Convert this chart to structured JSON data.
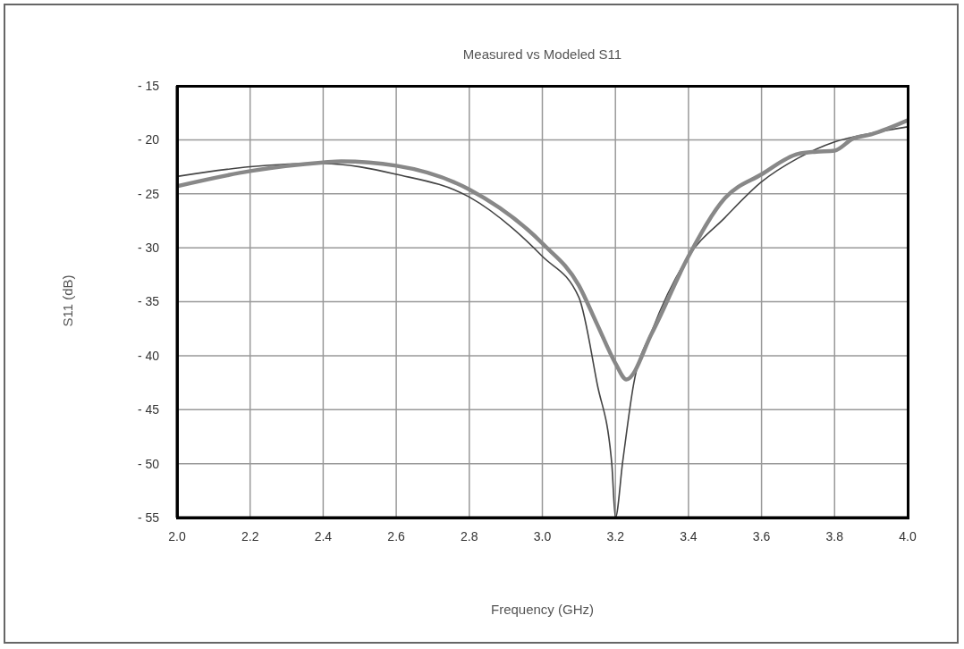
{
  "chart_data": {
    "type": "line",
    "title": "Measured vs Modeled S11",
    "xlabel": "Frequency (GHz)",
    "ylabel": "S11 (dB)",
    "xlim": [
      2,
      4
    ],
    "xticks": [
      {
        "value": 2,
        "label": "2.0"
      },
      {
        "value": 2.2,
        "label": "2.2"
      },
      {
        "value": 2.4,
        "label": "2.4"
      },
      {
        "value": 2.6,
        "label": "2.6"
      },
      {
        "value": 2.8,
        "label": "2.8"
      },
      {
        "value": 3,
        "label": "3.0"
      },
      {
        "value": 3.2,
        "label": "3.2"
      },
      {
        "value": 3.4,
        "label": "3.4"
      },
      {
        "value": 3.6,
        "label": "3.6"
      },
      {
        "value": 3.8,
        "label": "3.8"
      },
      {
        "value": 4,
        "label": "4.0"
      }
    ],
    "ylim": [
      -55,
      -15
    ],
    "yticks": [
      {
        "value": -55,
        "label": "- 55"
      },
      {
        "value": -50,
        "label": "- 50"
      },
      {
        "value": -45,
        "label": "- 45"
      },
      {
        "value": -40,
        "label": "- 40"
      },
      {
        "value": -35,
        "label": "- 35"
      },
      {
        "value": -30,
        "label": "- 30"
      },
      {
        "value": -25,
        "label": "- 25"
      },
      {
        "value": -20,
        "label": "- 20"
      },
      {
        "value": -15,
        "label": "- 15"
      }
    ],
    "grid": true,
    "marker": "none",
    "line_style": "solid",
    "series": [
      {
        "color": "#444444",
        "x": [
          2.0,
          2.2,
          2.35,
          2.4,
          2.6,
          2.8,
          3.0,
          3.1,
          3.15,
          3.19,
          3.2,
          3.22,
          3.25,
          3.3,
          3.4,
          3.5,
          3.6,
          3.7,
          3.8,
          3.9,
          4.0
        ],
        "values": [
          -23.4,
          -22.5,
          -22.2,
          -22.2,
          -23.2,
          -25.3,
          -30.8,
          -34.6,
          -42.6,
          -50,
          -55,
          -49.8,
          -42.6,
          -37.7,
          -30.8,
          -27.2,
          -23.9,
          -21.7,
          -20.2,
          -19.4,
          -18.8
        ]
      },
      {
        "color": "#888888",
        "x": [
          2.0,
          2.2,
          2.4,
          2.45,
          2.6,
          2.8,
          3.0,
          3.1,
          3.15,
          3.2,
          3.23,
          3.3,
          3.4,
          3.5,
          3.6,
          3.7,
          3.75,
          3.8,
          3.85,
          3.9,
          4.0
        ],
        "values": [
          -24.3,
          -22.9,
          -22.1,
          -22.0,
          -22.4,
          -24.6,
          -29.6,
          -33.5,
          -37.1,
          -40.7,
          -42.2,
          -37.9,
          -30.8,
          -25.4,
          -23.2,
          -21.3,
          -21.1,
          -21.0,
          -19.9,
          -19.5,
          -18.2
        ]
      }
    ]
  }
}
